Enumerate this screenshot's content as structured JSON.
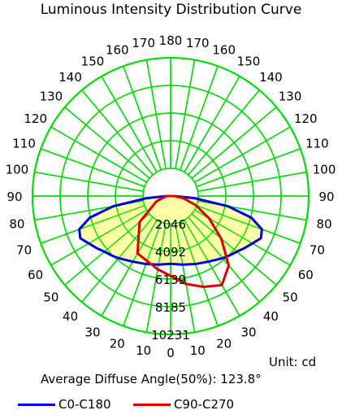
{
  "chart_data": {
    "type": "polar",
    "title": "Luminous Intensity Distribution Curve",
    "unit_label": "Unit: cd",
    "average_angle_text": "Average Diffuse Angle(50%): 123.8°",
    "radial_ticks": [
      "2046",
      "4092",
      "6139",
      "8185",
      "10231"
    ],
    "radial_max": 10231,
    "angle_labels": [
      "0",
      "10",
      "20",
      "30",
      "40",
      "50",
      "60",
      "70",
      "80",
      "90",
      "100",
      "110",
      "120",
      "130",
      "140",
      "150",
      "160",
      "170",
      "180"
    ],
    "grid": true,
    "legend_position": "bottom",
    "series": [
      {
        "name": "C0-C180",
        "color": "#0000dd",
        "fill": "#ffff99",
        "angles": [
          0,
          10,
          20,
          30,
          40,
          45,
          50,
          55,
          60,
          65,
          70,
          75,
          80,
          85,
          90
        ],
        "values": [
          5010,
          5150,
          5350,
          5600,
          6000,
          6200,
          6400,
          6700,
          7000,
          7380,
          7200,
          6200,
          4300,
          1800,
          300
        ]
      },
      {
        "name": "C90-C270",
        "color": "#dd0000",
        "angles": [
          -90,
          -70,
          -50,
          -30,
          -10,
          0,
          10,
          20,
          30,
          40,
          50,
          60,
          70,
          80,
          90
        ],
        "values": [
          300,
          1100,
          3000,
          4900,
          5500,
          5900,
          6600,
          7150,
          7600,
          6700,
          4900,
          3300,
          2000,
          1000,
          300
        ]
      }
    ]
  }
}
